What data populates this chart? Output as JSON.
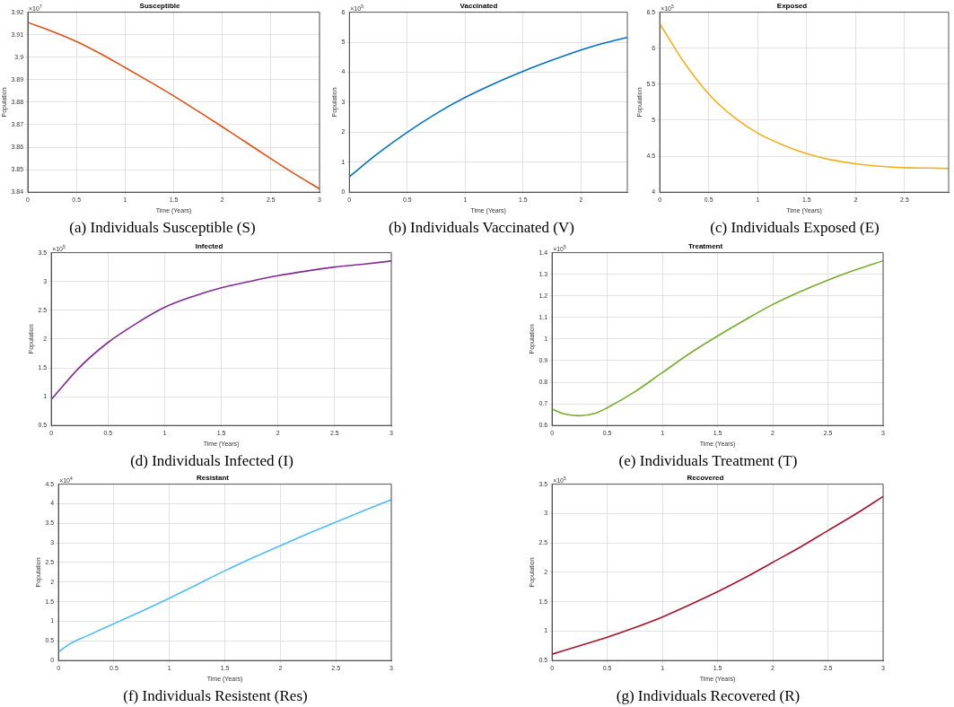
{
  "chart_data": [
    {
      "type": "line",
      "title": "Susceptible",
      "xlabel": "Time (Years)",
      "ylabel": "Population",
      "annotations": [
        "×10$^{7}$",
        "(a) Individuals Susceptible (S)"
      ],
      "xlim": [
        0,
        3
      ],
      "xticks": [
        0,
        0.5,
        1,
        1.5,
        2,
        2.5,
        3
      ],
      "ylim": [
        3.84,
        3.92
      ],
      "yticks": [
        3.84,
        3.85,
        3.86,
        3.87,
        3.88,
        3.89,
        {
          "value": 3.9,
          "label": "3.9"
        },
        3.91,
        3.92
      ],
      "grid": true,
      "marker": "none",
      "line_style": "solid",
      "series": [
        {
          "color": "#d95319",
          "x": [
            0,
            0.25,
            0.5,
            0.75,
            1,
            1.25,
            1.5,
            1.75,
            2,
            2.25,
            2.5,
            2.75,
            3
          ],
          "values": [
            3.9155,
            3.9115,
            3.907,
            3.9015,
            3.8954,
            3.8892,
            3.8828,
            3.876,
            3.8691,
            3.862,
            3.8549,
            3.848,
            3.8415
          ]
        }
      ]
    },
    {
      "type": "line",
      "title": "Vaccinated",
      "xlabel": "Time (Years)",
      "ylabel": "Population",
      "annotations": [
        "×10$^{5}$",
        "(b) Individuals Vaccinated (V)"
      ],
      "xlim": [
        0,
        2.4
      ],
      "xticks": [
        0,
        0.5,
        1,
        1.5,
        2
      ],
      "ylim": [
        0,
        6
      ],
      "yticks": [
        0,
        1,
        2,
        3,
        4,
        5,
        6
      ],
      "grid": true,
      "marker": "none",
      "line_style": "solid",
      "series": [
        {
          "color": "#0072bd",
          "x": [
            0,
            0.25,
            0.5,
            0.75,
            1,
            1.25,
            1.5,
            1.75,
            2,
            2.2,
            2.4
          ],
          "values": [
            0.52,
            1.3,
            2.0,
            2.62,
            3.16,
            3.62,
            4.03,
            4.4,
            4.74,
            4.97,
            5.16
          ]
        }
      ]
    },
    {
      "type": "line",
      "title": "Exposed",
      "xlabel": "Time (Years)",
      "ylabel": "Population",
      "annotations": [
        "×10$^{5}$",
        "(c) Individuals Exposed (E)"
      ],
      "xlim": [
        0,
        2.95
      ],
      "xticks": [
        0,
        0.5,
        1,
        1.5,
        2,
        2.5
      ],
      "ylim": [
        4,
        6.5
      ],
      "yticks": [
        4,
        4.5,
        5,
        5.5,
        6,
        6.5
      ],
      "grid": true,
      "marker": "none",
      "line_style": "solid",
      "series": [
        {
          "color": "#edb120",
          "x": [
            0,
            0.25,
            0.5,
            0.75,
            1,
            1.25,
            1.5,
            1.75,
            2,
            2.25,
            2.5,
            2.75,
            2.95
          ],
          "values": [
            6.34,
            5.8,
            5.365,
            5.05,
            4.82,
            4.66,
            4.535,
            4.45,
            4.395,
            4.36,
            4.34,
            4.335,
            4.33
          ]
        }
      ]
    },
    {
      "type": "line",
      "title": "Infected",
      "xlabel": "Time (Years)",
      "ylabel": "Population",
      "annotations": [
        "×10$^{5}$",
        "(d) Individuals Infected (I)"
      ],
      "xlim": [
        0,
        3
      ],
      "xticks": [
        0,
        0.5,
        1,
        1.5,
        2,
        2.5,
        3
      ],
      "ylim": [
        0.5,
        3.5
      ],
      "yticks": [
        0.5,
        1,
        1.5,
        2,
        2.5,
        3,
        3.5
      ],
      "grid": true,
      "marker": "none",
      "line_style": "solid",
      "series": [
        {
          "color": "#7e2f8e",
          "x": [
            0,
            0.25,
            0.5,
            0.75,
            1,
            1.25,
            1.5,
            1.75,
            2,
            2.25,
            2.5,
            2.75,
            3
          ],
          "values": [
            0.95,
            1.51,
            1.94,
            2.27,
            2.55,
            2.74,
            2.89,
            3.0,
            3.1,
            3.18,
            3.25,
            3.3,
            3.355
          ]
        }
      ]
    },
    {
      "type": "line",
      "title": "Treatment",
      "xlabel": "Time (Years)",
      "ylabel": "Population",
      "annotations": [
        "×10$^{5}$",
        "(e) Individuals Treatment (T)"
      ],
      "xlim": [
        0,
        3
      ],
      "xticks": [
        0,
        0.5,
        1,
        1.5,
        2,
        2.5,
        3
      ],
      "ylim": [
        0.6,
        1.4
      ],
      "yticks": [
        0.6,
        0.7,
        0.8,
        0.9,
        1,
        1.1,
        1.2,
        1.3,
        1.4
      ],
      "grid": true,
      "marker": "none",
      "line_style": "solid",
      "series": [
        {
          "color": "#77ac30",
          "x": [
            0,
            0.1,
            0.25,
            0.4,
            0.5,
            0.75,
            1,
            1.25,
            1.5,
            1.75,
            2,
            2.25,
            2.5,
            2.75,
            3
          ],
          "values": [
            0.676,
            0.655,
            0.645,
            0.658,
            0.682,
            0.756,
            0.845,
            0.934,
            1.014,
            1.089,
            1.16,
            1.22,
            1.273,
            1.32,
            1.362
          ]
        }
      ]
    },
    {
      "type": "line",
      "title": "Resistant",
      "xlabel": "Time (Years)",
      "ylabel": "Population",
      "annotations": [
        "×10$^{4}$",
        "(f) Individuals Resistent (Res)"
      ],
      "xlim": [
        0,
        3
      ],
      "xticks": [
        0,
        0.5,
        1,
        1.5,
        2,
        2.5,
        3
      ],
      "ylim": [
        0,
        4.5
      ],
      "yticks": [
        0,
        0.5,
        1,
        1.5,
        2,
        2.5,
        3,
        3.5,
        4,
        4.5
      ],
      "grid": true,
      "marker": "none",
      "line_style": "solid",
      "series": [
        {
          "color": "#4dbeee",
          "x": [
            0,
            0.1,
            0.25,
            0.5,
            0.75,
            1,
            1.25,
            1.5,
            1.75,
            2,
            2.25,
            2.5,
            2.75,
            3
          ],
          "values": [
            0.22,
            0.42,
            0.62,
            0.94,
            1.26,
            1.59,
            1.94,
            2.29,
            2.62,
            2.93,
            3.24,
            3.53,
            3.82,
            4.1
          ]
        }
      ]
    },
    {
      "type": "line",
      "title": "Recovered",
      "xlabel": "Time (Years)",
      "ylabel": "Population",
      "annotations": [
        "×10$^{5}$",
        "(g) Individuals Recovered (R)"
      ],
      "xlim": [
        0,
        3
      ],
      "xticks": [
        0,
        0.5,
        1,
        1.5,
        2,
        2.5,
        3
      ],
      "ylim": [
        0.5,
        3.5
      ],
      "yticks": [
        0.5,
        1,
        1.5,
        2,
        2.5,
        3,
        3.5
      ],
      "grid": true,
      "marker": "none",
      "line_style": "solid",
      "series": [
        {
          "color": "#a2142f",
          "x": [
            0,
            0.25,
            0.5,
            0.75,
            1,
            1.25,
            1.5,
            1.75,
            2,
            2.25,
            2.5,
            2.75,
            3
          ],
          "values": [
            0.608,
            0.75,
            0.896,
            1.06,
            1.24,
            1.45,
            1.67,
            1.91,
            2.17,
            2.43,
            2.71,
            2.99,
            3.29
          ]
        }
      ]
    }
  ]
}
